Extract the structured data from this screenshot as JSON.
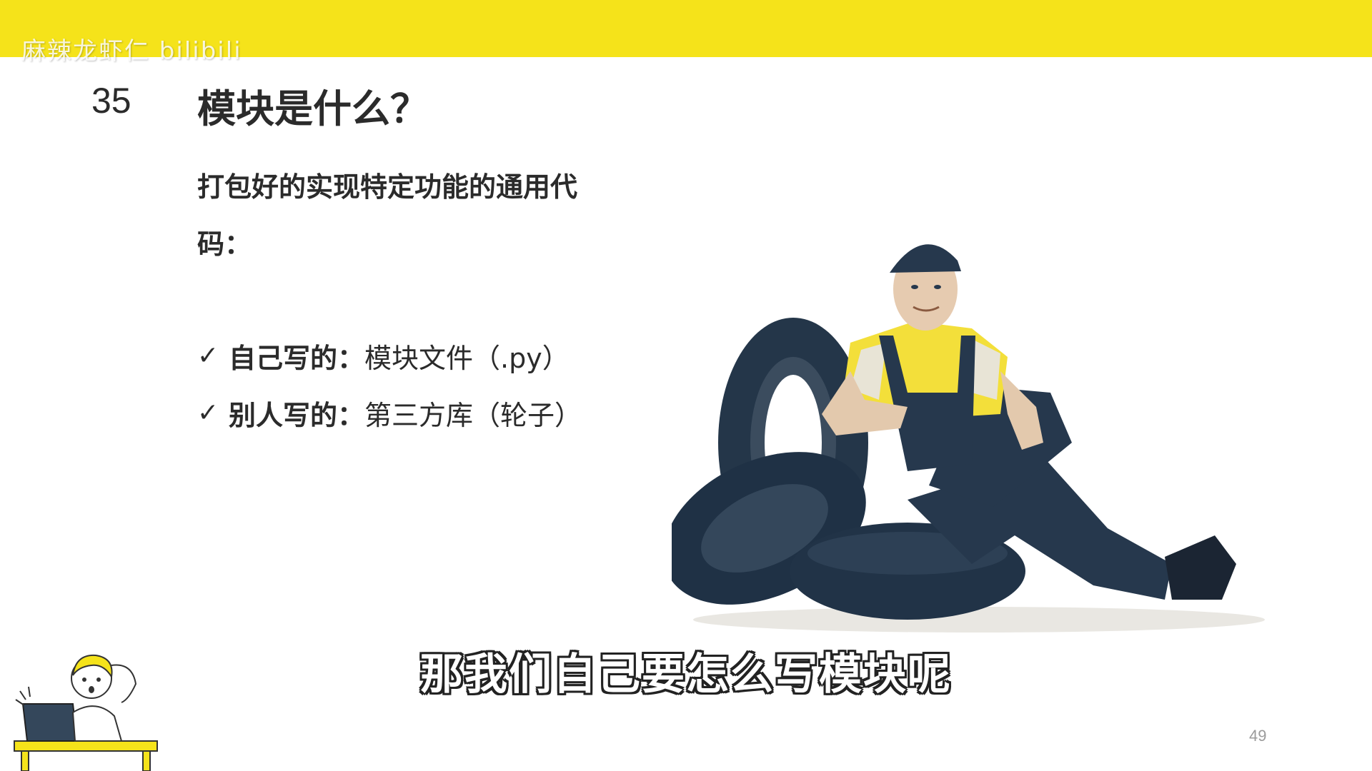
{
  "watermark": "麻辣龙虾仁 bilibili",
  "slide": {
    "number": "35",
    "title": "模块是什么？",
    "definition": "打包好的实现特定功能的通用代码：",
    "bullets": [
      {
        "label": "自己写的：",
        "text": "模块文件（.py）"
      },
      {
        "label": "别人写的：",
        "text": "第三方库（轮子）"
      }
    ],
    "page_number": "49"
  },
  "subtitle": "那我们自己要怎么写模块呢",
  "colors": {
    "accent": "#f5e31a",
    "text": "#2b2b2b",
    "navy": "#263a52"
  },
  "icons": [
    "check-icon",
    "mechanic-with-tires-illustration",
    "girl-with-laptop-mascot"
  ]
}
